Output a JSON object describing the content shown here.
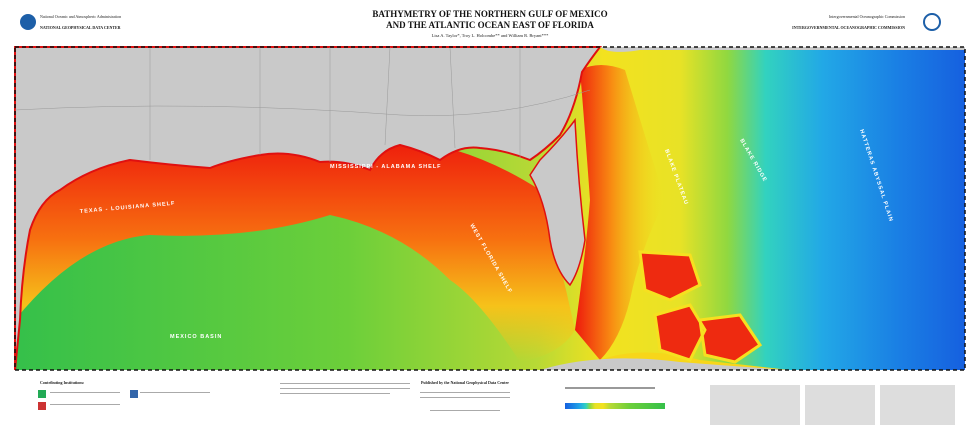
{
  "header": {
    "left": {
      "agency": "National Oceanic and Atmospheric Administration",
      "center": "NATIONAL GEOPHYSICAL DATA CENTER"
    },
    "title": [
      "BATHYMETRY OF THE NORTHERN GULF OF MEXICO",
      "AND THE ATLANTIC OCEAN EAST OF FLORIDA"
    ],
    "authors": "Lisa A. Taylor*, Troy L. Holcombe** and William R. Bryant***",
    "right": {
      "agency": "Intergovernmental Oceanographic Commission",
      "body": "INTERGOVERNMENTAL OCEANOGRAPHIC COMMISSION"
    }
  },
  "map": {
    "labels": [
      "TEXAS - LOUISIANA SHELF",
      "MISSISSIPPI - ALABAMA SHELF",
      "WEST FLORIDA SHELF",
      "MEXICO BASIN",
      "BLAKE PLATEAU",
      "BLAKE RIDGE",
      "HATTERAS ABYSSAL PLAIN"
    ]
  },
  "footer": {
    "contributors": "Contributing Institutions:",
    "publisher": "Published by the National Geophysical Data Center"
  }
}
